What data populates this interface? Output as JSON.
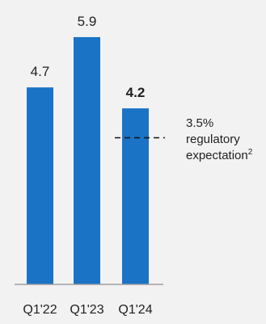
{
  "chart_data": {
    "type": "bar",
    "categories": [
      "Q1'22",
      "Q1'23",
      "Q1'24"
    ],
    "values": [
      4.7,
      5.9,
      4.2
    ],
    "value_labels": [
      "4.7",
      "5.9",
      "4.2"
    ],
    "highlighted_index": 2,
    "ylim": [
      0,
      6.4
    ],
    "grid": false,
    "bar_color": "#1a73c4",
    "axis_color": "#9e9e9e",
    "text_color": "#1f1f1f",
    "reference_line": {
      "value": 3.5,
      "style": "dashed",
      "label_lines": [
        "3.5%",
        "regulatory",
        "expectation"
      ],
      "label_superscript": "2"
    }
  }
}
